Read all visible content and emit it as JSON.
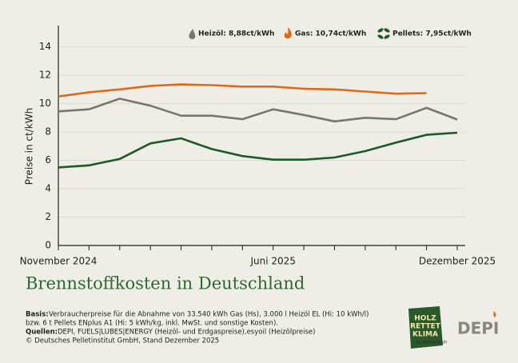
{
  "chart_data": {
    "type": "line",
    "title": "Brennstoffkosten in Deutschland",
    "y_label": "Preise in ct/kWh",
    "categories": [
      "November 2024",
      null,
      null,
      null,
      null,
      null,
      null,
      "Juni 2025",
      null,
      null,
      null,
      null,
      null,
      "Dezember 2025"
    ],
    "ylim": [
      0,
      15.5
    ],
    "yticks": [
      0,
      2,
      4,
      6,
      8,
      10,
      12,
      14
    ],
    "grid": true,
    "series": [
      {
        "name": "Heizöl: 8,88ct/kWh",
        "color": "#7b766b",
        "values": [
          9.45,
          9.6,
          10.35,
          9.85,
          9.15,
          9.15,
          8.9,
          9.6,
          9.2,
          8.75,
          9.0,
          8.9,
          9.7,
          8.88
        ]
      },
      {
        "name": "Gas: 10,74ct/kWh",
        "color": "#e06a1b",
        "values": [
          10.5,
          10.8,
          11.0,
          11.25,
          11.35,
          11.3,
          11.2,
          11.2,
          11.05,
          11.0,
          10.85,
          10.7,
          10.74,
          null
        ]
      },
      {
        "name": "Pellets: 7,95ct/kWh",
        "color": "#1e5a24",
        "values": [
          5.5,
          5.65,
          6.1,
          7.2,
          7.55,
          6.8,
          6.3,
          6.05,
          6.05,
          6.2,
          6.65,
          7.25,
          7.8,
          7.95
        ]
      }
    ]
  },
  "notes": {
    "basis_label": "Basis:",
    "basis_text": [
      "Verbraucherpreise für die Abnahme von 33.540 kWh Gas (Hs), 3.000 l Heizöl EL (Hi: 10 kWh/l)",
      "bzw. 6 t Pellets ENplus A1 (Hi: 5 kWh/kg, inkl. MwSt. und sonstige Kosten)."
    ],
    "sources_label": "Quellen:",
    "sources_text": "DEPI, FUELS|LUBES|ENERGY (Heizöl- und Erdgaspreise),esyoil (Heizölpreise)",
    "copyright": "© Deutsches Pelletinstitut GmbH, Stand Dezember 2025"
  },
  "logos": {
    "badge": [
      "HOLZ",
      "RETTET",
      "KLIMA"
    ],
    "badge_sub": "Es wächst nach",
    "brand": "DEPI"
  }
}
